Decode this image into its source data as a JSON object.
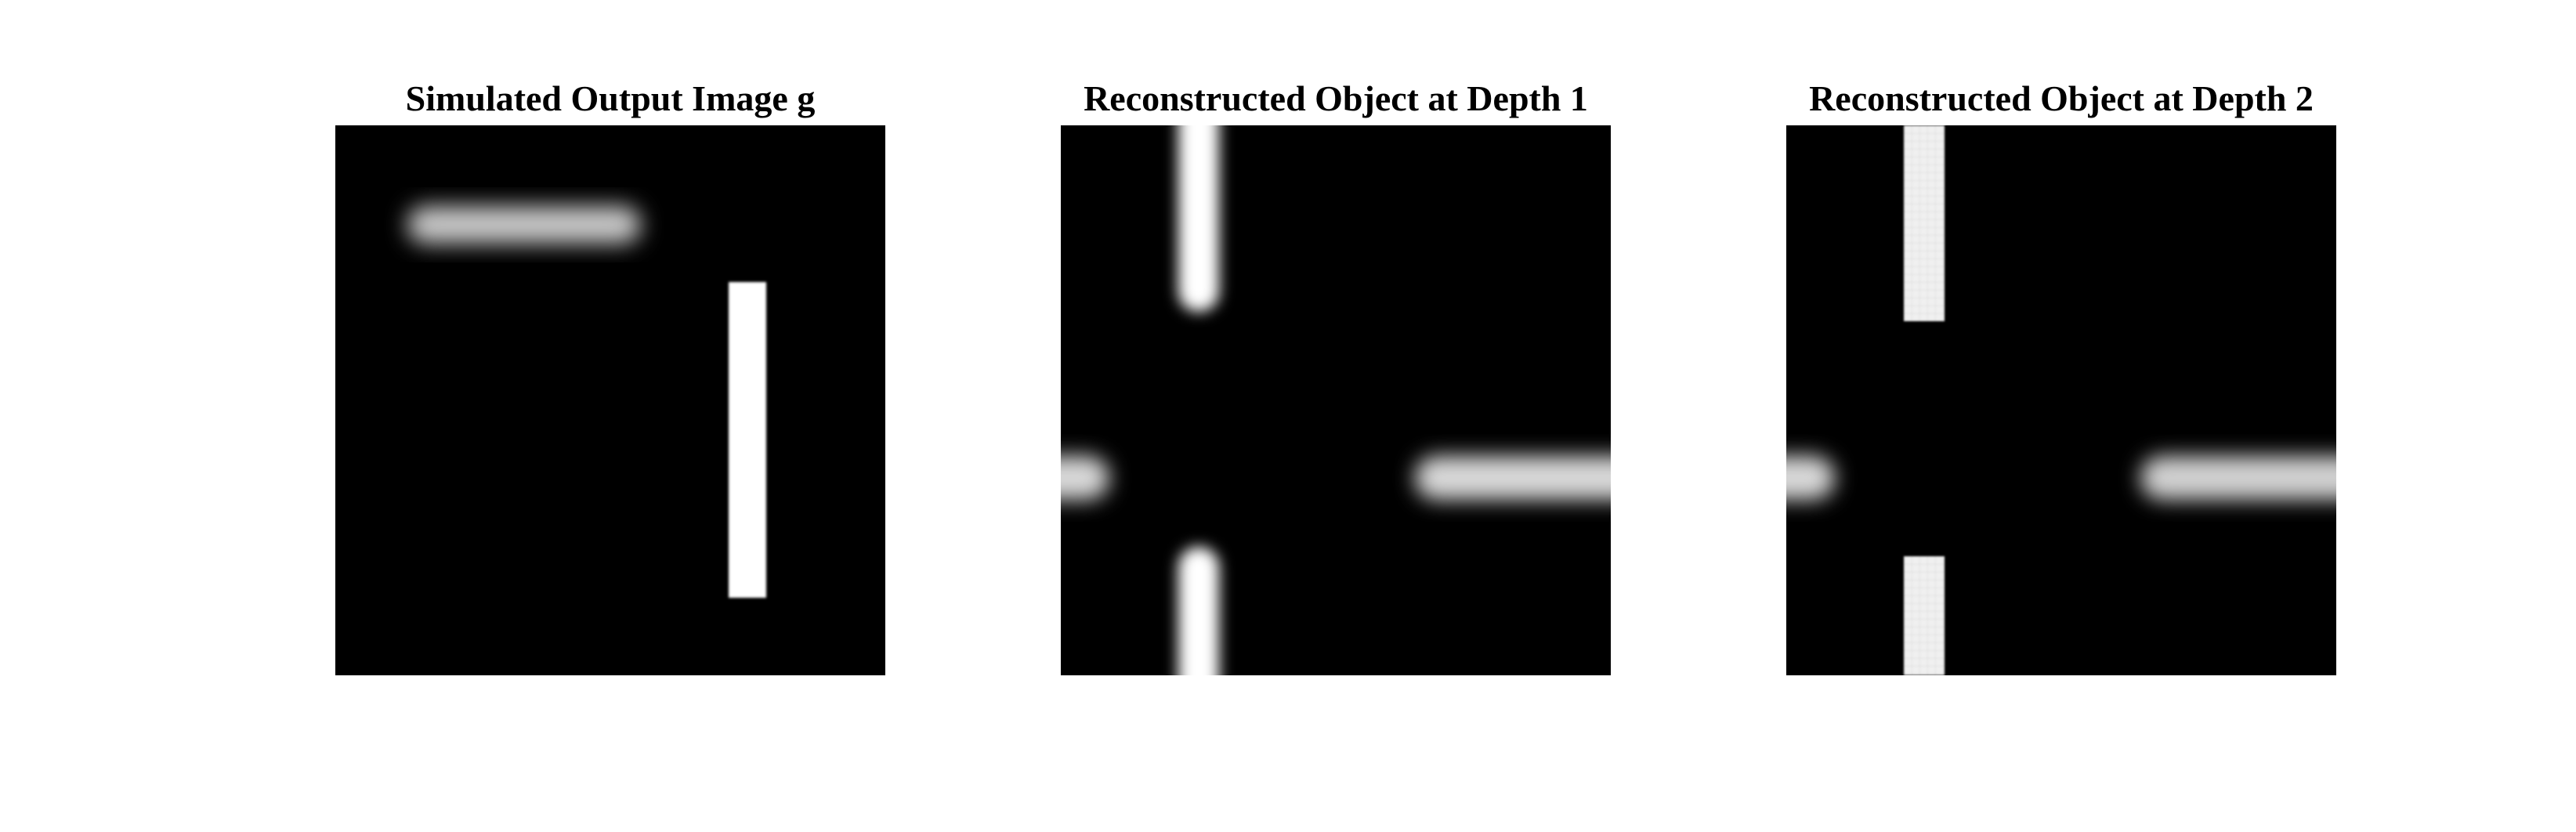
{
  "panels": [
    {
      "title": "Simulated Output Image g"
    },
    {
      "title": "Reconstructed Object at Depth 1"
    },
    {
      "title": "Reconstructed Object at Depth 2"
    }
  ],
  "colors": {
    "background": "#ffffff",
    "image_background": "#000000",
    "bar_white": "#ffffff",
    "bar_gray": "#c8c8c8"
  }
}
